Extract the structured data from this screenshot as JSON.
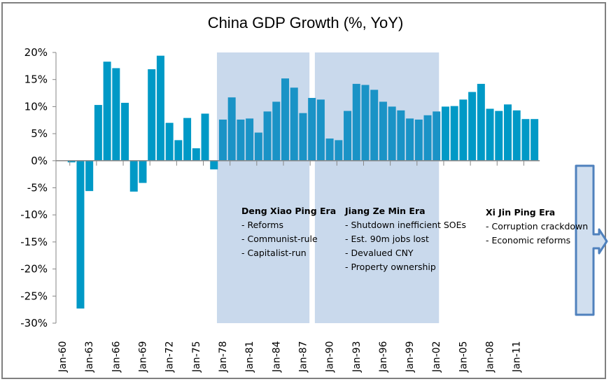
{
  "chart_data": {
    "type": "bar",
    "title": "China GDP Growth (%, YoY)",
    "xlabel": "",
    "ylabel": "",
    "ylim": [
      -30,
      20
    ],
    "y_ticks": [
      "20%",
      "15%",
      "10%",
      "5%",
      "0%",
      "-5%",
      "-10%",
      "-15%",
      "-20%",
      "-25%",
      "-30%"
    ],
    "y_tick_values": [
      20,
      15,
      10,
      5,
      0,
      -5,
      -10,
      -15,
      -20,
      -25,
      -30
    ],
    "x_tick_labels": [
      "Jan-60",
      "Jan-63",
      "Jan-66",
      "Jan-69",
      "Jan-72",
      "Jan-75",
      "Jan-78",
      "Jan-81",
      "Jan-84",
      "Jan-87",
      "Jan-90",
      "Jan-93",
      "Jan-96",
      "Jan-99",
      "Jan-02",
      "Jan-05",
      "Jan-08",
      "Jan-11"
    ],
    "grid": false,
    "legend": "none",
    "bar_color": "#0099c6",
    "categories": [
      "1960",
      "1961",
      "1962",
      "1963",
      "1964",
      "1965",
      "1966",
      "1967",
      "1968",
      "1969",
      "1970",
      "1971",
      "1972",
      "1973",
      "1974",
      "1975",
      "1976",
      "1977",
      "1978",
      "1979",
      "1980",
      "1981",
      "1982",
      "1983",
      "1984",
      "1985",
      "1986",
      "1987",
      "1988",
      "1989",
      "1990",
      "1991",
      "1992",
      "1993",
      "1994",
      "1995",
      "1996",
      "1997",
      "1998",
      "1999",
      "2000",
      "2001",
      "2002",
      "2003",
      "2004",
      "2005",
      "2006",
      "2007",
      "2008",
      "2009",
      "2010",
      "2011",
      "2012",
      "2013"
    ],
    "values": [
      null,
      -0.3,
      -27.3,
      -5.6,
      10.3,
      18.3,
      17.1,
      10.7,
      -5.7,
      -4.1,
      16.9,
      19.4,
      7.0,
      3.8,
      7.9,
      2.3,
      8.7,
      -1.6,
      7.6,
      11.7,
      7.6,
      7.8,
      5.2,
      9.1,
      10.9,
      15.2,
      13.5,
      8.8,
      11.6,
      11.3,
      4.1,
      3.8,
      9.2,
      14.2,
      14.0,
      13.1,
      10.9,
      10.0,
      9.3,
      7.8,
      7.6,
      8.4,
      9.1,
      10.0,
      10.1,
      11.3,
      12.7,
      14.2,
      9.6,
      9.2,
      10.4,
      9.3,
      7.7,
      7.7
    ],
    "shaded_regions": [
      {
        "name": "Deng Xiao Ping Era",
        "from": "1978",
        "to": "1988",
        "color": "#c9d9ec"
      },
      {
        "name": "Jiang Ze Min Era",
        "from": "1989",
        "to": "2002",
        "color": "#c9d9ec"
      }
    ],
    "annotations": [
      {
        "heading": "Deng Xiao Ping Era",
        "lines": [
          "- Reforms",
          "- Communist-rule",
          "- Capitalist-run"
        ]
      },
      {
        "heading": "Jiang Ze Min Era",
        "lines": [
          "- Shutdown inefficient SOEs",
          "- Est. 90m jobs lost",
          "- Devalued CNY",
          "- Property ownership"
        ]
      },
      {
        "heading": "Xi Jin Ping Era",
        "lines": [
          "- Corruption crackdown",
          "- Economic reforms"
        ]
      }
    ],
    "arrow_callout": {
      "direction": "right",
      "color": "#4f81bd",
      "fill": "#c9d9ec"
    }
  }
}
